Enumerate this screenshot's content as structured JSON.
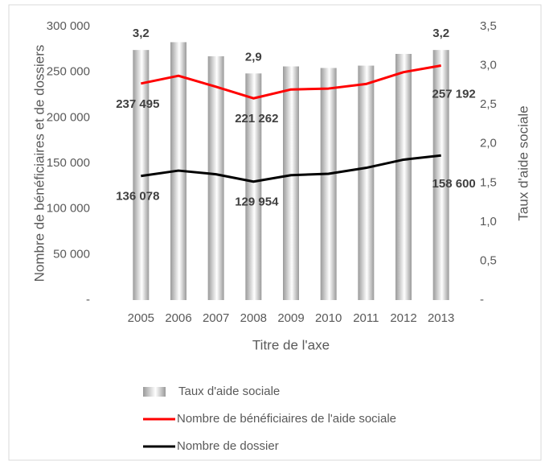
{
  "chart_data": {
    "type": "bar",
    "categories": [
      "2005",
      "2006",
      "2007",
      "2008",
      "2009",
      "2010",
      "2011",
      "2012",
      "2013"
    ],
    "x_label": "Titre de l'axe",
    "y_label": "Nombre de bénéficiaires et de dossiers",
    "y2_label": "Taux d'aide sociale",
    "ylim": [
      0,
      300000
    ],
    "yticks": [
      {
        "value": 0,
        "label": "-"
      },
      {
        "value": 50000,
        "label": "50 000"
      },
      {
        "value": 100000,
        "label": "100 000"
      },
      {
        "value": 150000,
        "label": "150 000"
      },
      {
        "value": 200000,
        "label": "200 000"
      },
      {
        "value": 250000,
        "label": "250 000"
      },
      {
        "value": 300000,
        "label": "300 000"
      }
    ],
    "y2lim": [
      0,
      3.5
    ],
    "y2ticks": [
      {
        "value": 0,
        "label": "-"
      },
      {
        "value": 0.5,
        "label": "0,5"
      },
      {
        "value": 1,
        "label": "1,0"
      },
      {
        "value": 1.5,
        "label": "1,5"
      },
      {
        "value": 2,
        "label": "2,0"
      },
      {
        "value": 2.5,
        "label": "2,5"
      },
      {
        "value": 3,
        "label": "3,0"
      },
      {
        "value": 3.5,
        "label": "3,5"
      }
    ],
    "series": [
      {
        "name": "Taux d'aide sociale",
        "type": "bar",
        "axis": "y2",
        "color": "#9a9a9a",
        "values": [
          3.2,
          3.3,
          3.12,
          2.9,
          2.99,
          2.97,
          3.0,
          3.15,
          3.2
        ],
        "value_labels": [
          "3,2",
          null,
          null,
          "2,9",
          null,
          null,
          null,
          null,
          "3,2"
        ]
      },
      {
        "name": "Nombre de bénéficiaires de l'aide sociale",
        "type": "line",
        "color": "#ff0000",
        "values": [
          237495,
          246000,
          234000,
          221262,
          231000,
          232000,
          237000,
          250000,
          257192
        ],
        "value_labels": [
          "237 495",
          null,
          null,
          "221 262",
          null,
          null,
          null,
          null,
          "257 192"
        ]
      },
      {
        "name": "Nombre de dossier",
        "type": "line",
        "color": "#000000",
        "values": [
          136078,
          142000,
          138000,
          129954,
          137000,
          138500,
          145000,
          154000,
          158600
        ],
        "value_labels": [
          "136 078",
          null,
          null,
          "129 954",
          null,
          null,
          null,
          null,
          "158 600"
        ]
      }
    ]
  }
}
